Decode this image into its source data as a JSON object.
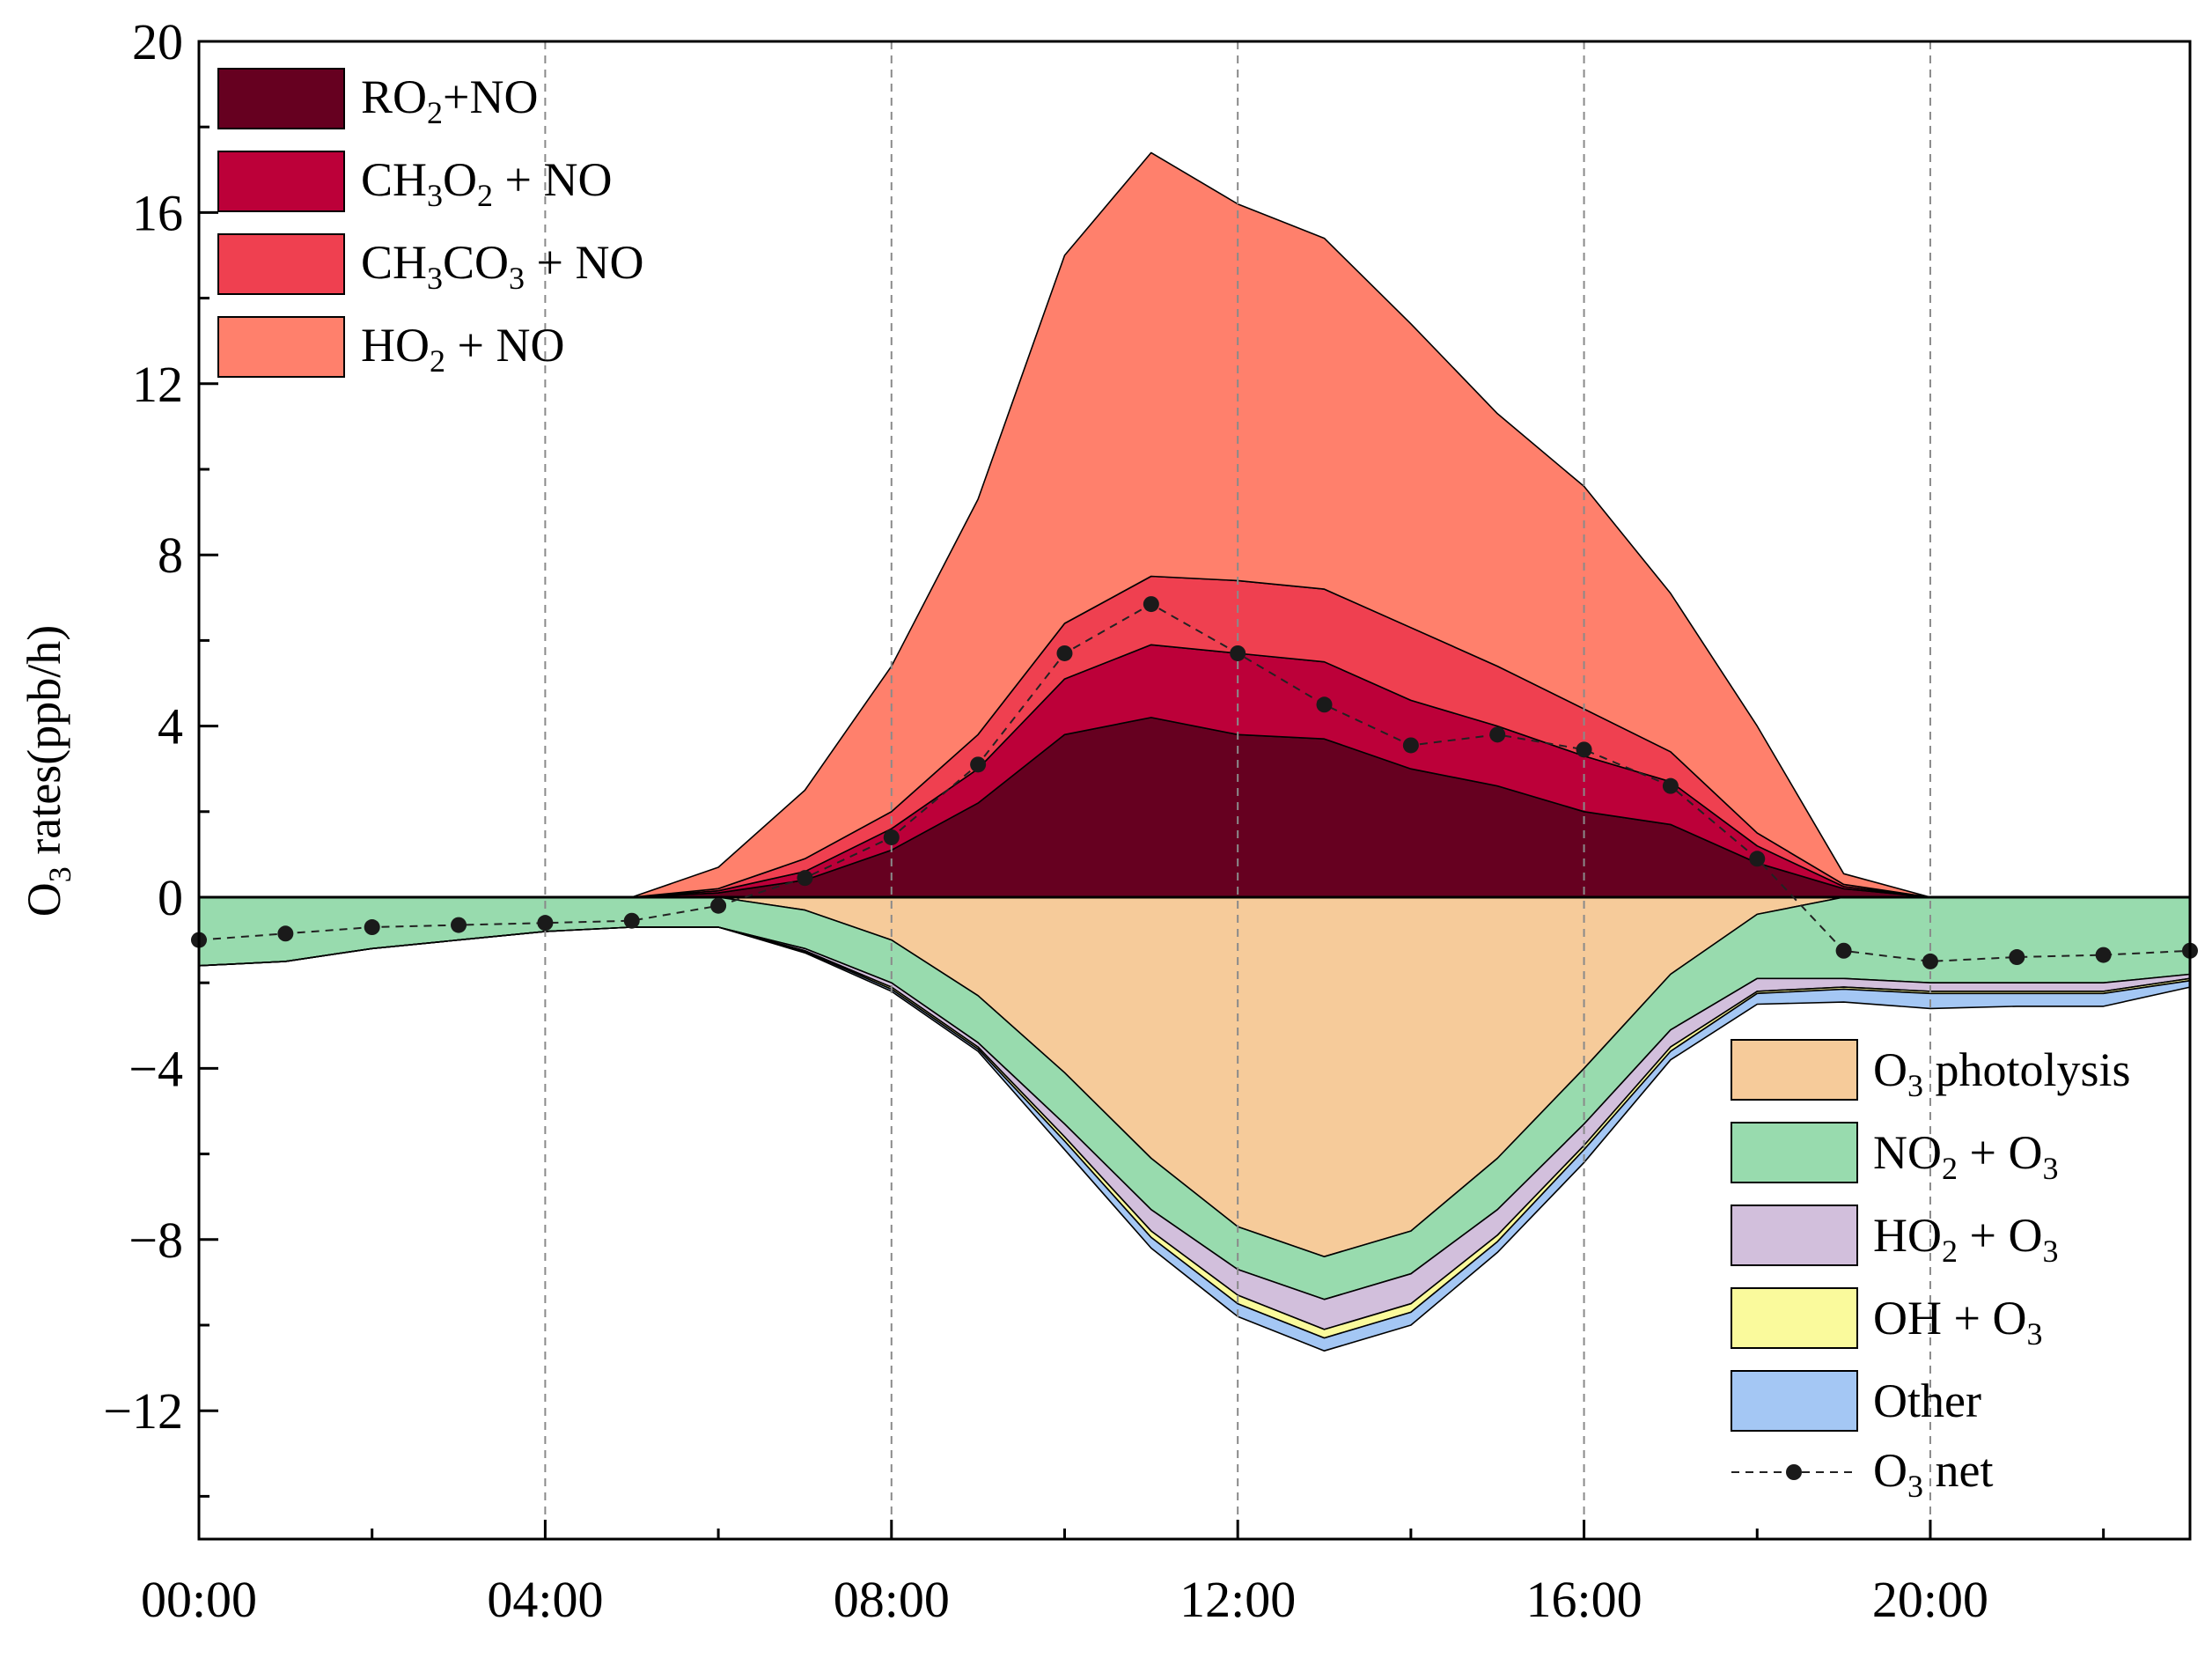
{
  "chart_data": {
    "type": "area",
    "title": "",
    "xlabel": "",
    "ylabel": "O3 rates(ppb/h)",
    "ylabel_parts": {
      "main": "O",
      "sub": "3",
      "rest": " rates(ppb/h)"
    },
    "xlim": [
      0,
      23
    ],
    "ylim": [
      -15,
      20
    ],
    "x_ticks": [
      0,
      4,
      8,
      12,
      16,
      20
    ],
    "x_tick_labels": [
      "00:00",
      "04:00",
      "08:00",
      "12:00",
      "16:00",
      "20:00"
    ],
    "y_ticks": [
      -12,
      -8,
      -4,
      0,
      4,
      8,
      12,
      16,
      20
    ],
    "y_tick_labels": [
      "−12",
      "−8",
      "−4",
      "0",
      "4",
      "8",
      "12",
      "16",
      "20"
    ],
    "vertical_gridlines": [
      4,
      8,
      12,
      16,
      20
    ],
    "hours": [
      0,
      1,
      2,
      3,
      4,
      5,
      6,
      7,
      8,
      9,
      10,
      11,
      12,
      13,
      14,
      15,
      16,
      17,
      18,
      19,
      20,
      21,
      22,
      23
    ],
    "production_series": [
      {
        "name": "RO2+NO",
        "legend": [
          {
            "t": "RO"
          },
          {
            "t": "2",
            "sub": true
          },
          {
            "t": "+NO"
          }
        ],
        "color": "#660020",
        "values": [
          0,
          0,
          0,
          0,
          0,
          0,
          0.1,
          0.4,
          1.1,
          2.2,
          3.8,
          4.2,
          3.8,
          3.7,
          3.0,
          2.6,
          2.0,
          1.7,
          0.8,
          0.2,
          0,
          0,
          0,
          0
        ]
      },
      {
        "name": "CH3O2 + NO",
        "legend": [
          {
            "t": "CH"
          },
          {
            "t": "3",
            "sub": true
          },
          {
            "t": "O"
          },
          {
            "t": "2",
            "sub": true
          },
          {
            "t": " + NO"
          }
        ],
        "color": "#BC0039",
        "values": [
          0,
          0,
          0,
          0,
          0,
          0,
          0.05,
          0.2,
          0.5,
          0.8,
          1.3,
          1.7,
          1.9,
          1.8,
          1.6,
          1.4,
          1.3,
          1.0,
          0.4,
          0.05,
          0,
          0,
          0,
          0
        ]
      },
      {
        "name": "CH3CO3 + NO",
        "legend": [
          {
            "t": "CH"
          },
          {
            "t": "3",
            "sub": true
          },
          {
            "t": "CO"
          },
          {
            "t": "3",
            "sub": true
          },
          {
            "t": " + NO"
          }
        ],
        "color": "#EF4050",
        "values": [
          0,
          0,
          0,
          0,
          0,
          0,
          0.05,
          0.3,
          0.4,
          0.8,
          1.3,
          1.6,
          1.7,
          1.7,
          1.7,
          1.4,
          1.1,
          0.7,
          0.3,
          0.05,
          0,
          0,
          0,
          0
        ]
      },
      {
        "name": "HO2 + NO",
        "legend": [
          {
            "t": "HO"
          },
          {
            "t": "2",
            "sub": true
          },
          {
            "t": " + NO"
          }
        ],
        "color": "#FF806C",
        "values": [
          0,
          0,
          0,
          0,
          0,
          0,
          0.5,
          1.6,
          3.4,
          5.5,
          8.6,
          9.9,
          8.8,
          8.2,
          7.1,
          5.9,
          5.2,
          3.7,
          2.5,
          0.25,
          0,
          0,
          0,
          0
        ]
      }
    ],
    "loss_series": [
      {
        "name": "O3 photolysis",
        "legend": [
          {
            "t": "O"
          },
          {
            "t": "3",
            "sub": true
          },
          {
            "t": " photolysis"
          }
        ],
        "color": "#F6CB9A",
        "values": [
          0,
          0,
          0,
          0,
          0,
          0,
          0,
          0.3,
          1.0,
          2.3,
          4.1,
          6.1,
          7.7,
          8.4,
          7.8,
          6.1,
          4.0,
          1.8,
          0.4,
          0,
          0,
          0,
          0,
          0
        ]
      },
      {
        "name": "NO2 + O3",
        "legend": [
          {
            "t": "NO"
          },
          {
            "t": "2",
            "sub": true
          },
          {
            "t": " + O"
          },
          {
            "t": "3",
            "sub": true
          }
        ],
        "color": "#98DBAE",
        "values": [
          1.6,
          1.5,
          1.2,
          1.0,
          0.8,
          0.7,
          0.7,
          0.9,
          1.0,
          1.1,
          1.2,
          1.2,
          1.0,
          1.0,
          1.0,
          1.2,
          1.3,
          1.3,
          1.5,
          1.9,
          2.0,
          2.0,
          2.0,
          1.8
        ]
      },
      {
        "name": "HO2 + O3",
        "legend": [
          {
            "t": "HO"
          },
          {
            "t": "2",
            "sub": true
          },
          {
            "t": " + O"
          },
          {
            "t": "3",
            "sub": true
          }
        ],
        "color": "#D2BFDC",
        "values": [
          0,
          0,
          0,
          0,
          0,
          0,
          0,
          0.05,
          0.1,
          0.1,
          0.3,
          0.5,
          0.6,
          0.7,
          0.7,
          0.6,
          0.5,
          0.4,
          0.3,
          0.2,
          0.2,
          0.2,
          0.2,
          0.1
        ]
      },
      {
        "name": "OH + O3",
        "legend": [
          {
            "t": "OH + O"
          },
          {
            "t": "3",
            "sub": true
          }
        ],
        "color": "#FAFA9C",
        "values": [
          0,
          0,
          0,
          0,
          0,
          0,
          0,
          0.02,
          0.05,
          0.05,
          0.1,
          0.15,
          0.2,
          0.2,
          0.2,
          0.15,
          0.1,
          0.1,
          0.05,
          0.05,
          0.05,
          0.05,
          0.05,
          0.05
        ]
      },
      {
        "name": "Other",
        "legend": [
          {
            "t": "Other"
          }
        ],
        "color": "#A4C7F4",
        "values": [
          0,
          0,
          0,
          0,
          0,
          0,
          0,
          0.03,
          0.05,
          0.05,
          0.2,
          0.25,
          0.3,
          0.3,
          0.3,
          0.25,
          0.3,
          0.2,
          0.25,
          0.3,
          0.35,
          0.3,
          0.3,
          0.15
        ]
      }
    ],
    "net_series": {
      "name": "O3 net",
      "legend": [
        {
          "t": "O"
        },
        {
          "t": "3",
          "sub": true
        },
        {
          "t": " net"
        }
      ],
      "color": "#222222",
      "values": [
        -1.0,
        -0.85,
        -0.7,
        -0.65,
        -0.6,
        -0.55,
        -0.2,
        0.45,
        1.4,
        3.1,
        5.7,
        6.85,
        5.7,
        4.5,
        3.55,
        3.8,
        3.45,
        2.6,
        0.9,
        -1.25,
        -1.5,
        -1.4,
        -1.35,
        -1.25
      ]
    }
  }
}
